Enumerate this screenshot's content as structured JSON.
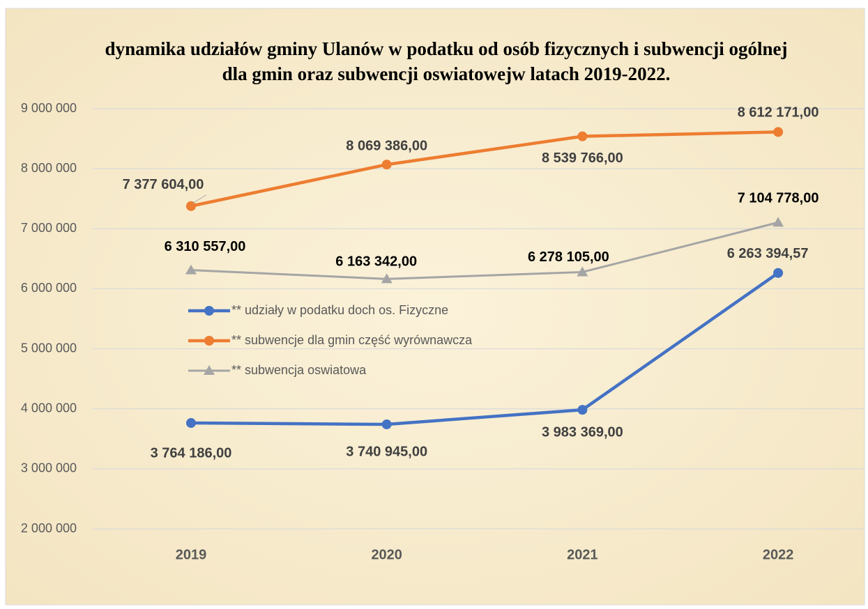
{
  "chart_data": {
    "type": "line",
    "title": "dynamika udziałów gminy Ulanów w podatku od osób fizycznych i subwencji ogólnej dla gmin oraz subwencji oswiatowejw latach 2019-2022.",
    "categories": [
      "2019",
      "2020",
      "2021",
      "2022"
    ],
    "ylim": [
      2000000,
      9000000
    ],
    "yticks": [
      {
        "value": 2000000,
        "label": "2 000 000"
      },
      {
        "value": 3000000,
        "label": "3 000 000"
      },
      {
        "value": 4000000,
        "label": "4 000 000"
      },
      {
        "value": 5000000,
        "label": "5 000 000"
      },
      {
        "value": 6000000,
        "label": "6 000 000"
      },
      {
        "value": 7000000,
        "label": "7 000 000"
      },
      {
        "value": 8000000,
        "label": "8 000 000"
      },
      {
        "value": 9000000,
        "label": "9 000 000"
      }
    ],
    "grid": true,
    "series": [
      {
        "name": "** udziały w podatku doch os. Fizyczne",
        "color": "#4472c4",
        "marker": "circle",
        "values": [
          3764186,
          3740945,
          3983369,
          6263394.57
        ],
        "value_labels": [
          "3 764 186,00",
          "3 740 945,00",
          "3 983 369,00",
          "6 263 394,57"
        ]
      },
      {
        "name": "** subwencje dla gmin część wyrównawcza",
        "color": "#ed7d31",
        "marker": "circle",
        "values": [
          7377604,
          8069386,
          8539766,
          8612171
        ],
        "value_labels": [
          "7 377 604,00",
          "8 069 386,00",
          "8 539 766,00",
          "8 612 171,00"
        ]
      },
      {
        "name": "** subwencja oswiatowa",
        "color": "#a5a5a5",
        "marker": "triangle",
        "values": [
          6310557,
          6163342,
          6278105,
          7104778
        ],
        "value_labels": [
          "6 310 557,00",
          "6 163 342,00",
          "6 278 105,00",
          "7 104 778,00"
        ]
      }
    ]
  }
}
